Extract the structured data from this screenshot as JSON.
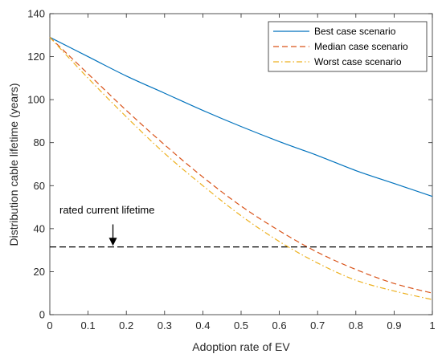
{
  "chart_data": {
    "type": "line",
    "xlabel": "Adoption rate of EV",
    "ylabel": "Distribution cable lifetime (years)",
    "xlim": [
      0,
      1
    ],
    "ylim": [
      0,
      140
    ],
    "xticks": [
      0,
      0.1,
      0.2,
      0.3,
      0.4,
      0.5,
      0.6,
      0.7,
      0.8,
      0.9,
      1
    ],
    "xtick_labels": [
      "0",
      "0.1",
      "0.2",
      "0.3",
      "0.4",
      "0.5",
      "0.6",
      "0.7",
      "0.8",
      "0.9",
      "1"
    ],
    "yticks": [
      0,
      20,
      40,
      60,
      80,
      100,
      120,
      140
    ],
    "ytick_labels": [
      "0",
      "20",
      "40",
      "60",
      "80",
      "100",
      "120",
      "140"
    ],
    "grid": false,
    "legend_position": "top-right",
    "x": [
      0,
      0.1,
      0.2,
      0.3,
      0.4,
      0.5,
      0.6,
      0.7,
      0.8,
      0.9,
      1.0
    ],
    "series": [
      {
        "name": "Best case scenario",
        "color": "#0072BD",
        "dash": "solid",
        "values": [
          129,
          120,
          111,
          103,
          95,
          87.5,
          80.5,
          74,
          67,
          61,
          55
        ]
      },
      {
        "name": "Median case scenario",
        "color": "#D95319",
        "dash": "dashed",
        "values": [
          129,
          112,
          95,
          79,
          64,
          50.5,
          39,
          29,
          21,
          14.5,
          10
        ]
      },
      {
        "name": "Worst case scenario",
        "color": "#EDB120",
        "dash": "dashdot",
        "values": [
          129,
          110,
          92,
          75,
          60,
          46,
          34,
          24,
          16,
          11,
          7
        ]
      }
    ],
    "reference_line": {
      "y": 31.5,
      "color": "#000000",
      "dash": "dashed"
    },
    "annotation": {
      "text": "rated current lifetime",
      "arrow_x": 0.165,
      "arrow_from_y": 42,
      "arrow_to_y": 32
    }
  }
}
